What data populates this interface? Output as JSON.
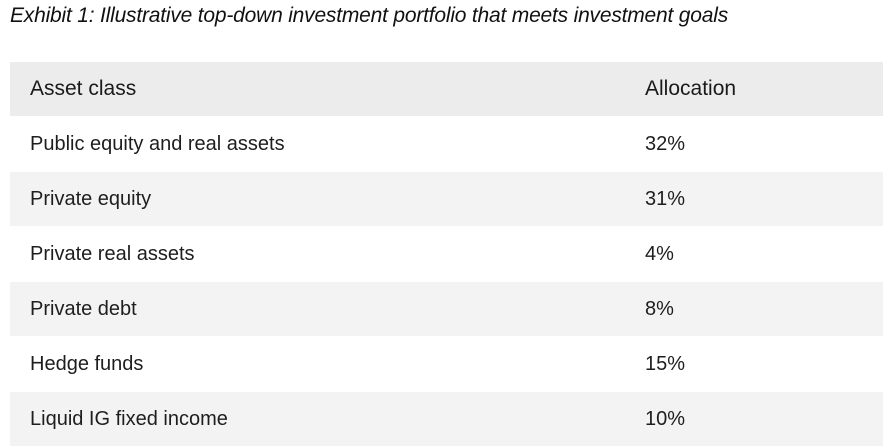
{
  "title": "Exhibit 1: Illustrative top-down investment portfolio that meets investment goals",
  "table": {
    "headers": {
      "asset_class": "Asset class",
      "allocation": "Allocation"
    },
    "rows": [
      {
        "asset_class": "Public equity and real assets",
        "allocation": "32%"
      },
      {
        "asset_class": "Private equity",
        "allocation": "31%"
      },
      {
        "asset_class": "Private real assets",
        "allocation": "4%"
      },
      {
        "asset_class": "Private debt",
        "allocation": "8%"
      },
      {
        "asset_class": "Hedge funds",
        "allocation": "15%"
      },
      {
        "asset_class": "Liquid IG fixed income",
        "allocation": "10%"
      }
    ]
  },
  "colors": {
    "header_bg": "#ececec",
    "stripe_bg": "#f3f3f3",
    "text": "#1a1a1a"
  }
}
